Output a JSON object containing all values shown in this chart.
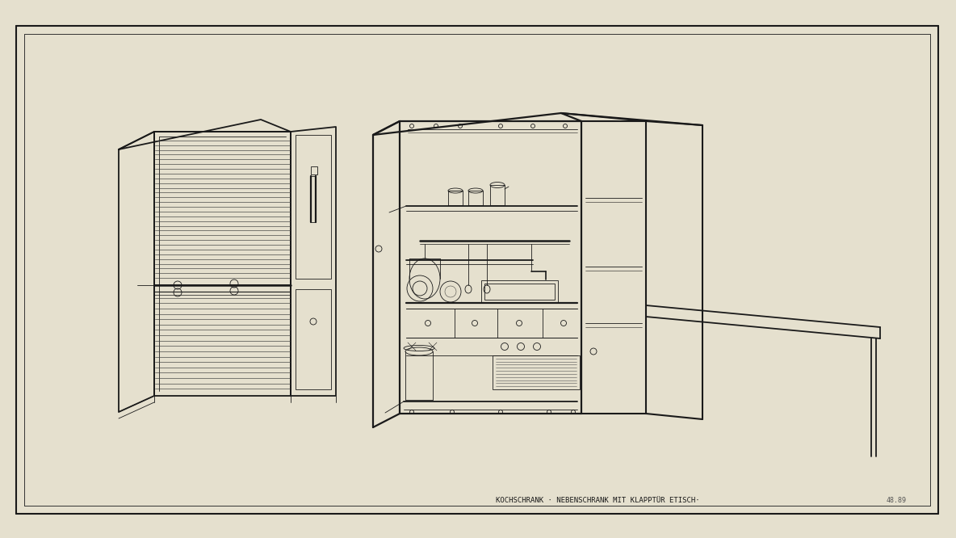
{
  "bg_color": "#e5e0ce",
  "line_color": "#1a1a1a",
  "lw": 1.3,
  "tlw": 0.6,
  "annotation_text": "KOCHSCHRANK · NEBENSCHRANK MIT KLAPPTÜR ETISCH·",
  "annotation_text2": "48.89",
  "fig_width": 11.84,
  "fig_height": 6.66,
  "dpi": 100
}
